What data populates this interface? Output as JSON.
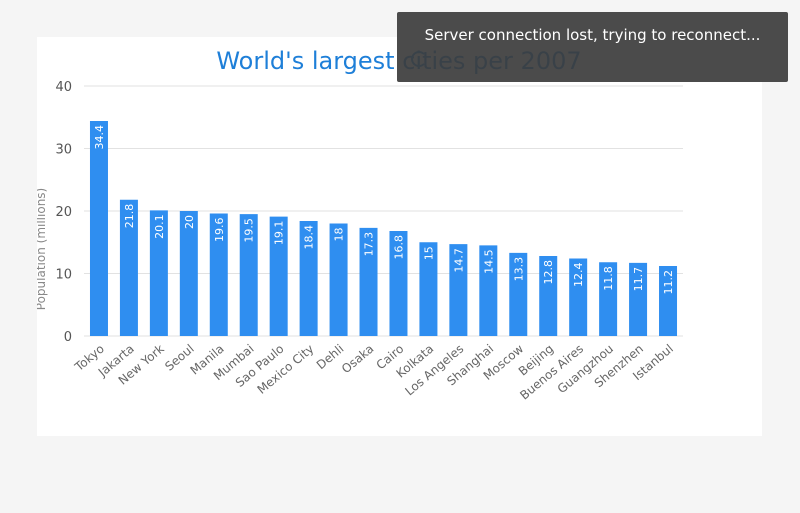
{
  "toast": {
    "message": "Server connection lost, trying to reconnect..."
  },
  "chart_data": {
    "type": "bar",
    "title": "World's largest cities per 2007",
    "xlabel": "",
    "ylabel": "Population (millions)",
    "ylim": [
      0,
      40
    ],
    "yticks": [
      0,
      10,
      20,
      30,
      40
    ],
    "grid": true,
    "categories": [
      "Tokyo",
      "Jakarta",
      "New York",
      "Seoul",
      "Manila",
      "Mumbai",
      "Sao Paulo",
      "Mexico City",
      "Dehli",
      "Osaka",
      "Cairo",
      "Kolkata",
      "Los Angeles",
      "Shanghai",
      "Moscow",
      "Beijing",
      "Buenos Aires",
      "Guangzhou",
      "Shenzhen",
      "Istanbul"
    ],
    "values": [
      34.4,
      21.8,
      20.1,
      20,
      19.6,
      19.5,
      19.1,
      18.4,
      18,
      17.3,
      16.8,
      15,
      14.7,
      14.5,
      13.3,
      12.8,
      12.4,
      11.8,
      11.7,
      11.2
    ],
    "bar_color": "#2f8ef0",
    "title_color": "#1e7fd8"
  }
}
